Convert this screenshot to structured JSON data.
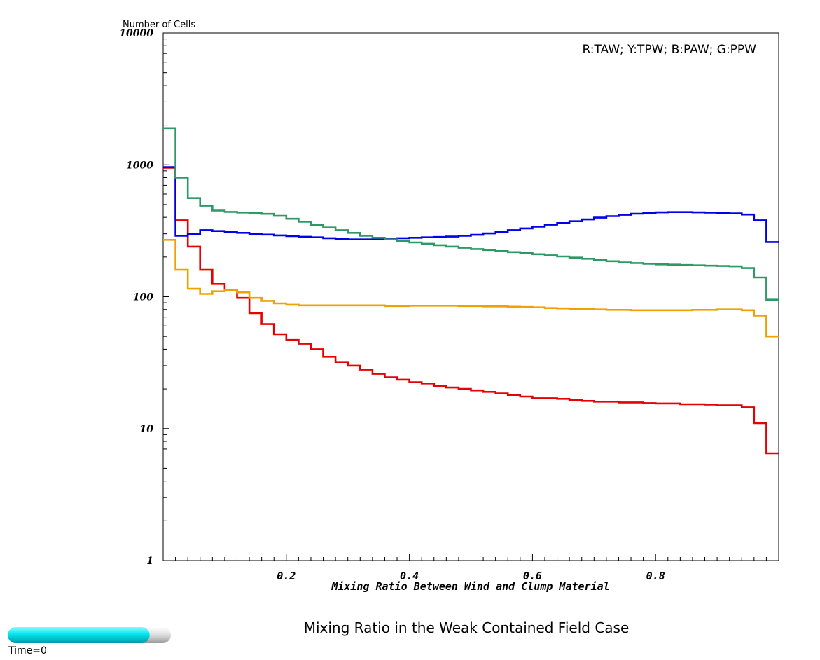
{
  "chart_data": {
    "type": "line",
    "title": "Mixing Ratio in the Weak Contained Field Case",
    "xlabel": "Mixing Ratio Between Wind and Clump Material",
    "ylabel": "Number of Cells",
    "legend_text": "R:TAW; Y:TPW; B:PAW; G:PPW",
    "legend_position": "top-right",
    "xlim": [
      0,
      1
    ],
    "ylim": [
      1,
      10000
    ],
    "y_scale": "log",
    "grid": false,
    "x_ticks": [
      0.2,
      0.4,
      0.6,
      0.8
    ],
    "x_tick_labels": [
      "0.2",
      "0.4",
      "0.6",
      "0.8"
    ],
    "y_ticks": [
      1,
      10,
      100,
      1000,
      10000
    ],
    "y_tick_labels": [
      "1",
      "10",
      "100",
      "1000",
      "10000"
    ],
    "x": [
      0.01,
      0.03,
      0.05,
      0.07,
      0.09,
      0.11,
      0.13,
      0.15,
      0.17,
      0.19,
      0.21,
      0.23,
      0.25,
      0.27,
      0.29,
      0.31,
      0.33,
      0.35,
      0.37,
      0.39,
      0.41,
      0.43,
      0.45,
      0.47,
      0.49,
      0.51,
      0.53,
      0.55,
      0.57,
      0.59,
      0.61,
      0.63,
      0.65,
      0.67,
      0.69,
      0.71,
      0.73,
      0.75,
      0.77,
      0.79,
      0.81,
      0.83,
      0.85,
      0.87,
      0.89,
      0.91,
      0.93,
      0.95,
      0.97,
      0.99
    ],
    "series": [
      {
        "color": "#e60000",
        "values": [
          950,
          380,
          240,
          160,
          125,
          112,
          98,
          75,
          62,
          52,
          47,
          44,
          40,
          35,
          32,
          30,
          28,
          26,
          24.5,
          23.5,
          22.5,
          22,
          21,
          20.5,
          20,
          19.5,
          19,
          18.5,
          18,
          17.5,
          17,
          17,
          16.8,
          16.5,
          16.2,
          16,
          16,
          15.8,
          15.8,
          15.6,
          15.5,
          15.5,
          15.3,
          15.3,
          15.2,
          15,
          15,
          14.5,
          11,
          6.5
        ]
      },
      {
        "color": "#f0a000",
        "values": [
          270,
          160,
          115,
          105,
          110,
          112,
          108,
          98,
          93,
          89,
          87,
          86,
          86,
          86,
          86,
          86,
          86,
          86,
          85,
          85,
          85.5,
          85.5,
          85.5,
          85.5,
          85,
          85,
          84.5,
          84.5,
          84,
          83.5,
          83,
          82,
          81.5,
          81,
          80.5,
          80,
          79.5,
          79.5,
          79,
          79,
          79,
          79,
          79,
          79.5,
          79.5,
          80,
          80,
          79,
          72,
          50
        ]
      },
      {
        "color": "#0000e6",
        "values": [
          960,
          290,
          300,
          320,
          315,
          310,
          305,
          300,
          296,
          292,
          288,
          285,
          282,
          278,
          275,
          272,
          272,
          273,
          276,
          278,
          280,
          282,
          284,
          286,
          290,
          295,
          302,
          310,
          320,
          330,
          340,
          352,
          362,
          374,
          386,
          398,
          408,
          418,
          426,
          432,
          436,
          438,
          438,
          436,
          434,
          432,
          428,
          420,
          380,
          260
        ]
      },
      {
        "color": "#2e9966",
        "values": [
          1900,
          800,
          560,
          490,
          450,
          440,
          435,
          430,
          425,
          410,
          390,
          370,
          350,
          335,
          320,
          305,
          290,
          280,
          272,
          265,
          258,
          252,
          246,
          240,
          235,
          230,
          226,
          222,
          218,
          214,
          210,
          206,
          202,
          198,
          194,
          190,
          186,
          182,
          180,
          178,
          176,
          175,
          174,
          173,
          172,
          171,
          170,
          165,
          140,
          95
        ]
      }
    ]
  },
  "time_label": "Time=0",
  "time_slider_fraction": 0.87
}
